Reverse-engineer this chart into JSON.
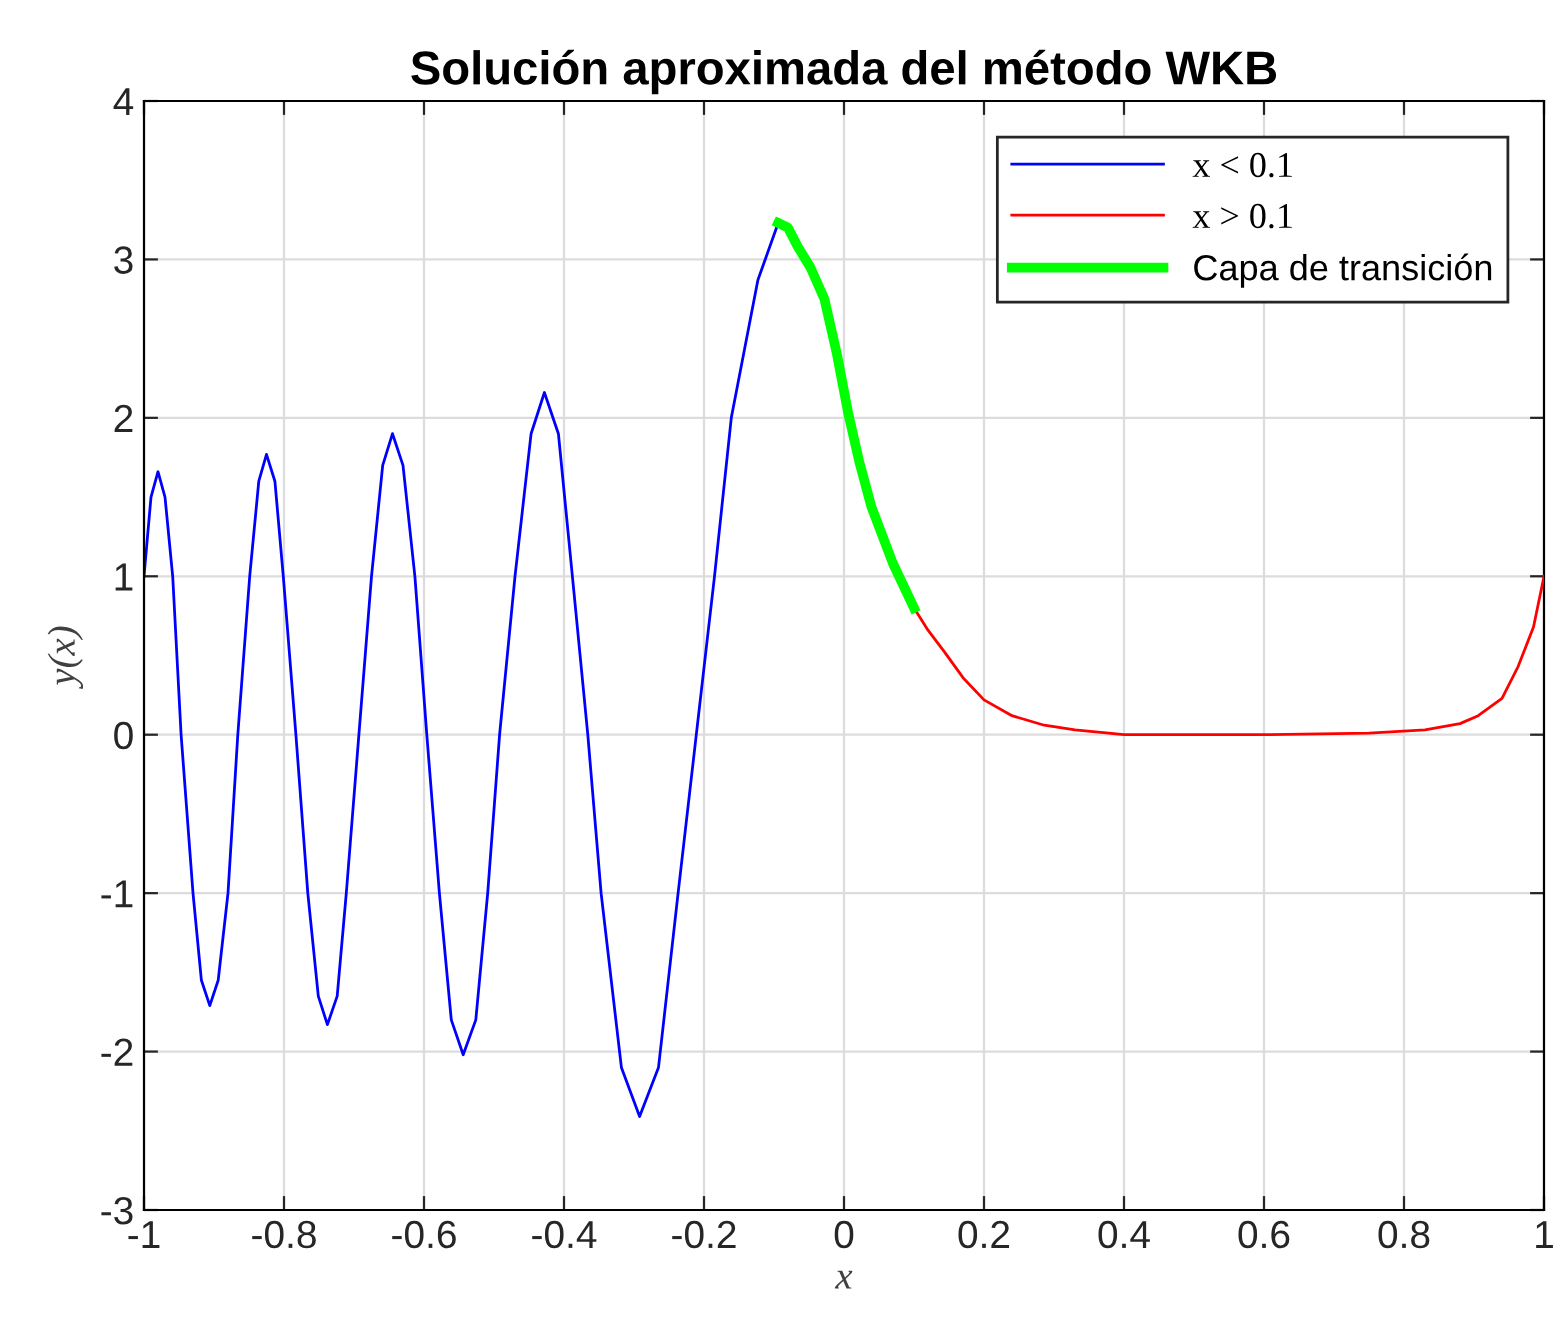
{
  "chart_data": {
    "type": "line",
    "title": "Solución aproximada del método WKB",
    "xlabel": "x",
    "ylabel": "y(x)",
    "xlim": [
      -1,
      1
    ],
    "xticks": [
      -1,
      -0.8,
      -0.6,
      -0.4,
      -0.2,
      0,
      0.2,
      0.4,
      0.6,
      0.8,
      1
    ],
    "ylim": [
      -3,
      4
    ],
    "yticks": [
      -3,
      -2,
      -1,
      0,
      1,
      2,
      3,
      4
    ],
    "grid": true,
    "legend": "top right",
    "marker": "none",
    "line_style": "solid",
    "series": [
      {
        "name": "x < 0.1",
        "color": "#0000ff",
        "x": [
          -1,
          -0.99,
          -0.98,
          -0.97,
          -0.959,
          -0.947,
          -0.93,
          -0.918,
          -0.906,
          -0.894,
          -0.88,
          -0.866,
          -0.849,
          -0.836,
          -0.825,
          -0.813,
          -0.801,
          -0.783,
          -0.766,
          -0.751,
          -0.738,
          -0.724,
          -0.711,
          -0.693,
          -0.675,
          -0.659,
          -0.645,
          -0.63,
          -0.613,
          -0.596,
          -0.578,
          -0.561,
          -0.544,
          -0.526,
          -0.509,
          -0.492,
          -0.47,
          -0.447,
          -0.428,
          -0.408,
          -0.388,
          -0.366,
          -0.347,
          -0.318,
          -0.292,
          -0.265,
          -0.237,
          -0.211,
          -0.185,
          -0.161,
          -0.123,
          -0.094
        ],
        "values": [
          1.0,
          1.5,
          1.66,
          1.5,
          1.0,
          0,
          -1.0,
          -1.55,
          -1.71,
          -1.55,
          -1.0,
          0,
          1.0,
          1.6,
          1.77,
          1.6,
          1.0,
          0,
          -1.0,
          -1.65,
          -1.83,
          -1.65,
          -1.0,
          0,
          1.0,
          1.7,
          1.9,
          1.7,
          1.0,
          0,
          -1.0,
          -1.8,
          -2.02,
          -1.8,
          -1.0,
          0,
          1.0,
          1.9,
          2.16,
          1.9,
          1.0,
          0,
          -1.0,
          -2.1,
          -2.41,
          -2.1,
          -1.0,
          0,
          1.0,
          2.0,
          2.87,
          3.23
        ]
      },
      {
        "name": "x > 0.1",
        "color": "#ff0000",
        "x": [
          0.1,
          0.12,
          0.144,
          0.17,
          0.2,
          0.24,
          0.286,
          0.33,
          0.4,
          0.6,
          0.75,
          0.83,
          0.88,
          0.906,
          0.94,
          0.963,
          0.985,
          1.0
        ],
        "values": [
          0.8,
          0.66,
          0.52,
          0.36,
          0.22,
          0.12,
          0.06,
          0.03,
          0.0,
          0.0,
          0.01,
          0.03,
          0.07,
          0.12,
          0.23,
          0.43,
          0.68,
          1.0
        ]
      },
      {
        "name": "Capa de transición",
        "color": "#00ff00",
        "x": [
          -0.094,
          -0.08,
          -0.066,
          -0.048,
          -0.028,
          -0.01,
          0.006,
          0.022,
          0.039,
          0.07,
          0.1
        ],
        "values": [
          3.23,
          3.2,
          3.08,
          2.95,
          2.75,
          2.4,
          2.03,
          1.72,
          1.44,
          1.08,
          0.8
        ]
      }
    ]
  }
}
